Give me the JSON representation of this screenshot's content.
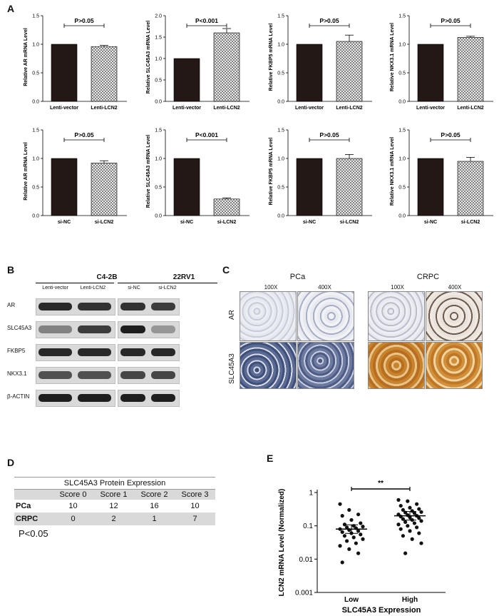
{
  "panelA": {
    "letter": "A",
    "charts": [
      {
        "ylabel": "Relative AR mRNA Level",
        "categories": [
          "Lenti-vector",
          "Lenti-LCN2"
        ],
        "values": [
          1.0,
          0.96
        ],
        "errors": [
          0,
          0.02
        ],
        "pval": "P>0.05",
        "yticks": [
          "0.0",
          "0.5",
          "1.0",
          "1.5"
        ],
        "ymax": 1.5
      },
      {
        "ylabel": "Relative SLC45A3 mRNA Level",
        "categories": [
          "Lenti-vector",
          "Lenti-LCN2"
        ],
        "values": [
          1.0,
          1.6
        ],
        "errors": [
          0,
          0.1
        ],
        "pval": "P<0.001",
        "yticks": [
          "0.0",
          "0.5",
          "1.0",
          "1.5",
          "2.0"
        ],
        "ymax": 2.0
      },
      {
        "ylabel": "Relative FKBP5 mRNA Level",
        "categories": [
          "Lenti-vector",
          "Lenti-LCN2"
        ],
        "values": [
          1.0,
          1.05
        ],
        "errors": [
          0,
          0.11
        ],
        "pval": "P>0.05",
        "yticks": [
          "0.0",
          "0.5",
          "1.0",
          "1.5"
        ],
        "ymax": 1.5
      },
      {
        "ylabel": "Relative NKX3.1 mRNA Level",
        "categories": [
          "Lenti-vector",
          "Lenti-LCN2"
        ],
        "values": [
          1.0,
          1.12
        ],
        "errors": [
          0,
          0.02
        ],
        "pval": "P>0.05",
        "yticks": [
          "0.0",
          "0.5",
          "1.0",
          "1.5"
        ],
        "ymax": 1.5
      },
      {
        "ylabel": "Relative AR mRNA Level",
        "categories": [
          "si-NC",
          "si-LCN2"
        ],
        "values": [
          1.0,
          0.92
        ],
        "errors": [
          0,
          0.04
        ],
        "pval": "P>0.05",
        "yticks": [
          "0.0",
          "0.5",
          "1.0",
          "1.5"
        ],
        "ymax": 1.5
      },
      {
        "ylabel": "Relative SLC45A3 mRNA Level",
        "categories": [
          "si-NC",
          "si-LCN2"
        ],
        "values": [
          1.0,
          0.29
        ],
        "errors": [
          0,
          0.02
        ],
        "pval": "P<0.001",
        "yticks": [
          "0.0",
          "0.5",
          "1.0",
          "1.5"
        ],
        "ymax": 1.5
      },
      {
        "ylabel": "Relative FKBP5 mRNA Level",
        "categories": [
          "si-NC",
          "si-LCN2"
        ],
        "values": [
          1.0,
          1.0
        ],
        "errors": [
          0,
          0.07
        ],
        "pval": "P>0.05",
        "yticks": [
          "0.0",
          "0.5",
          "1.0",
          "1.5"
        ],
        "ymax": 1.5
      },
      {
        "ylabel": "Relative NKX3.1 mRNA Level",
        "categories": [
          "si-NC",
          "si-LCN2"
        ],
        "values": [
          1.0,
          0.95
        ],
        "errors": [
          0,
          0.07
        ],
        "pval": "P>0.05",
        "yticks": [
          "0.0",
          "0.5",
          "1.0",
          "1.5"
        ],
        "ymax": 1.5
      }
    ]
  },
  "panelB": {
    "letter": "B",
    "cell_lines": [
      "C4-2B",
      "22RV1"
    ],
    "lanes": [
      "Lenti-vector",
      "Lenti-LCN2",
      "si-NC",
      "si-LCN2"
    ],
    "proteins": [
      "AR",
      "SLC45A3",
      "FKBP5",
      "NKX3.1",
      "β-ACTIN"
    ]
  },
  "panelC": {
    "letter": "C",
    "groups": [
      "PCa",
      "CRPC"
    ],
    "magnifications": [
      "100X",
      "400X",
      "100X",
      "400X"
    ],
    "rows": [
      "AR",
      "SLC45A3"
    ]
  },
  "panelD": {
    "letter": "D",
    "title": "SLC45A3 Protein Expression",
    "columns": [
      "Score 0",
      "Score 1",
      "Score 2",
      "Score 3"
    ],
    "rows": [
      {
        "label": "PCa",
        "values": [
          "10",
          "12",
          "16",
          "10"
        ]
      },
      {
        "label": "CRPC",
        "values": [
          "0",
          "2",
          "1",
          "7"
        ]
      }
    ],
    "pval": "P<0.05"
  },
  "chart_data": [
    {
      "type": "bar",
      "title": "",
      "ylabel": "Relative AR mRNA Level",
      "categories": [
        "Lenti-vector",
        "Lenti-LCN2"
      ],
      "values": [
        1.0,
        0.96
      ],
      "ylim": [
        0,
        1.5
      ]
    },
    {
      "type": "bar",
      "title": "",
      "ylabel": "Relative SLC45A3 mRNA Level",
      "categories": [
        "Lenti-vector",
        "Lenti-LCN2"
      ],
      "values": [
        1.0,
        1.6
      ],
      "ylim": [
        0,
        2.0
      ]
    },
    {
      "type": "bar",
      "title": "",
      "ylabel": "Relative FKBP5 mRNA Level",
      "categories": [
        "Lenti-vector",
        "Lenti-LCN2"
      ],
      "values": [
        1.0,
        1.05
      ],
      "ylim": [
        0,
        1.5
      ]
    },
    {
      "type": "bar",
      "title": "",
      "ylabel": "Relative NKX3.1 mRNA Level",
      "categories": [
        "Lenti-vector",
        "Lenti-LCN2"
      ],
      "values": [
        1.0,
        1.12
      ],
      "ylim": [
        0,
        1.5
      ]
    },
    {
      "type": "bar",
      "title": "",
      "ylabel": "Relative AR mRNA Level",
      "categories": [
        "si-NC",
        "si-LCN2"
      ],
      "values": [
        1.0,
        0.92
      ],
      "ylim": [
        0,
        1.5
      ]
    },
    {
      "type": "bar",
      "title": "",
      "ylabel": "Relative SLC45A3 mRNA Level",
      "categories": [
        "si-NC",
        "si-LCN2"
      ],
      "values": [
        1.0,
        0.29
      ],
      "ylim": [
        0,
        1.5
      ]
    },
    {
      "type": "bar",
      "title": "",
      "ylabel": "Relative FKBP5 mRNA Level",
      "categories": [
        "si-NC",
        "si-LCN2"
      ],
      "values": [
        1.0,
        1.0
      ],
      "ylim": [
        0,
        1.5
      ]
    },
    {
      "type": "bar",
      "title": "",
      "ylabel": "Relative NKX3.1 mRNA Level",
      "categories": [
        "si-NC",
        "si-LCN2"
      ],
      "values": [
        1.0,
        0.95
      ],
      "ylim": [
        0,
        1.5
      ]
    },
    {
      "type": "scatter",
      "panel": "E",
      "xlabel": "SLC45A3 Expression",
      "ylabel": "LCN2 mRNA Level (Normalized)",
      "yscale": "log",
      "ylim": [
        0.001,
        1
      ],
      "yticks": [
        "0.001",
        "0.01",
        "0.1",
        "1"
      ],
      "categories": [
        "Low",
        "High"
      ],
      "significance": "**",
      "series": [
        {
          "name": "Low",
          "mean": 0.08,
          "values": [
            0.45,
            0.3,
            0.22,
            0.2,
            0.15,
            0.12,
            0.11,
            0.1,
            0.095,
            0.09,
            0.085,
            0.08,
            0.075,
            0.07,
            0.065,
            0.06,
            0.055,
            0.05,
            0.045,
            0.04,
            0.035,
            0.03,
            0.025,
            0.02,
            0.015,
            0.008
          ]
        },
        {
          "name": "High",
          "mean": 0.2,
          "values": [
            0.6,
            0.55,
            0.45,
            0.4,
            0.35,
            0.32,
            0.3,
            0.28,
            0.26,
            0.25,
            0.24,
            0.22,
            0.21,
            0.2,
            0.19,
            0.18,
            0.17,
            0.16,
            0.15,
            0.14,
            0.13,
            0.12,
            0.11,
            0.1,
            0.09,
            0.08,
            0.07,
            0.06,
            0.05,
            0.04,
            0.03,
            0.015
          ]
        }
      ]
    }
  ],
  "panelE": {
    "letter": "E"
  }
}
